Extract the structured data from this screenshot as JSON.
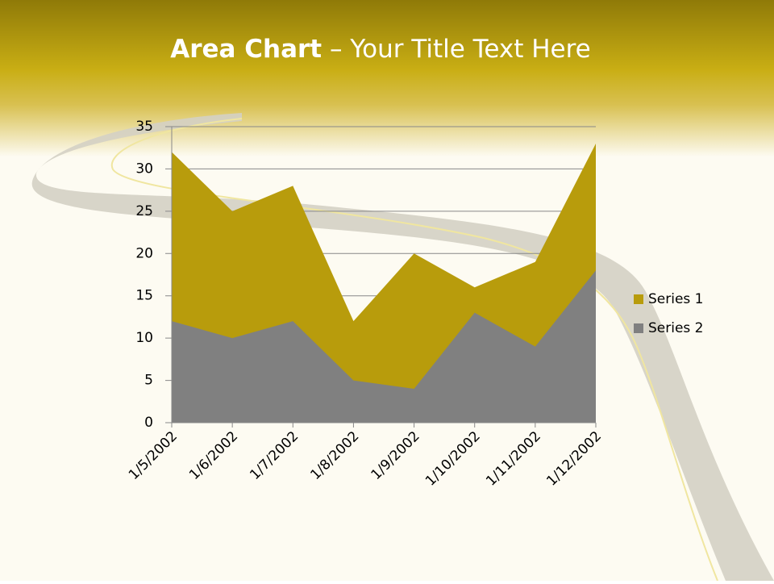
{
  "chart_data": {
    "type": "area",
    "title_parts": [
      "Area Chart",
      " – Your Title Text Here"
    ],
    "categories": [
      "1/5/2002",
      "1/6/2002",
      "1/7/2002",
      "1/8/2002",
      "1/9/2002",
      "1/10/2002",
      "1/11/2002",
      "1/12/2002"
    ],
    "series": [
      {
        "name": "Series 1",
        "color": "#b89c0c",
        "values": [
          32,
          25,
          28,
          12,
          20,
          16,
          19,
          33
        ]
      },
      {
        "name": "Series 2",
        "color": "#808080",
        "values": [
          12,
          10,
          12,
          5,
          4,
          13,
          9,
          18
        ]
      }
    ],
    "ylim": [
      0,
      35
    ],
    "yticks": [
      0,
      5,
      10,
      15,
      20,
      25,
      30,
      35
    ],
    "grid": true,
    "legend": "right"
  }
}
